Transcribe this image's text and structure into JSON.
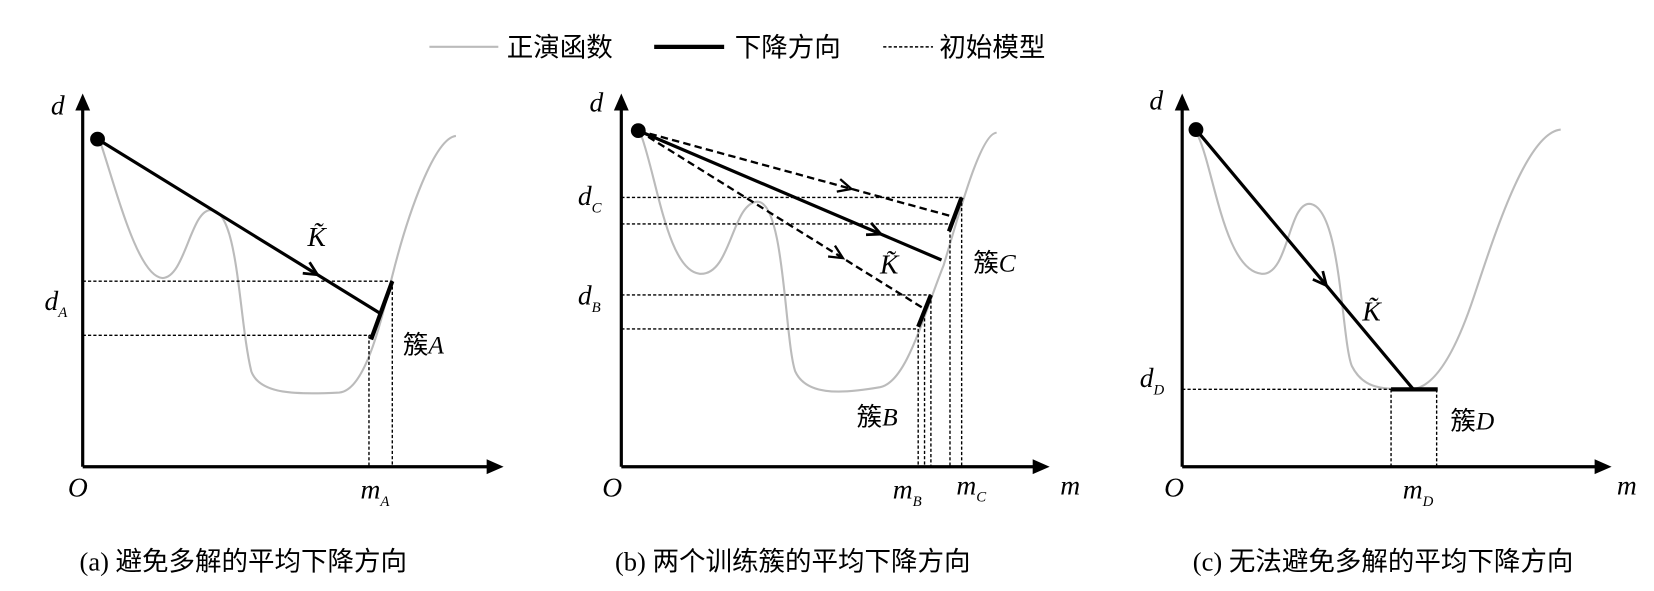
{
  "legend": [
    "正演函数",
    "下降方向",
    "初始模型"
  ],
  "panels": [
    {
      "caption": "(a) 避免多解的平均下降方向",
      "y_axis": "d",
      "origin": "O",
      "y_labels": [
        {
          "base": "d",
          "sub": "A"
        }
      ],
      "x_labels": [
        {
          "base": "m",
          "sub": "A"
        }
      ],
      "direction": "K̃",
      "clusters": [
        {
          "prefix": "簇",
          "name": "A"
        }
      ]
    },
    {
      "caption": "(b) 两个训练簇的平均下降方向",
      "y_axis": "d",
      "origin": "O",
      "x_axis": "m",
      "y_labels": [
        {
          "base": "d",
          "sub": "C"
        },
        {
          "base": "d",
          "sub": "B"
        }
      ],
      "x_labels": [
        {
          "base": "m",
          "sub": "B"
        },
        {
          "base": "m",
          "sub": "C"
        }
      ],
      "direction": "K̃",
      "clusters": [
        {
          "prefix": "簇",
          "name": "C"
        },
        {
          "prefix": "簇",
          "name": "B"
        }
      ]
    },
    {
      "caption": "(c) 无法避免多解的平均下降方向",
      "y_axis": "d",
      "origin": "O",
      "x_axis": "m",
      "y_labels": [
        {
          "base": "d",
          "sub": "D"
        }
      ],
      "x_labels": [
        {
          "base": "m",
          "sub": "D"
        }
      ],
      "direction": "K̃",
      "clusters": [
        {
          "prefix": "簇",
          "name": "D"
        }
      ]
    }
  ]
}
